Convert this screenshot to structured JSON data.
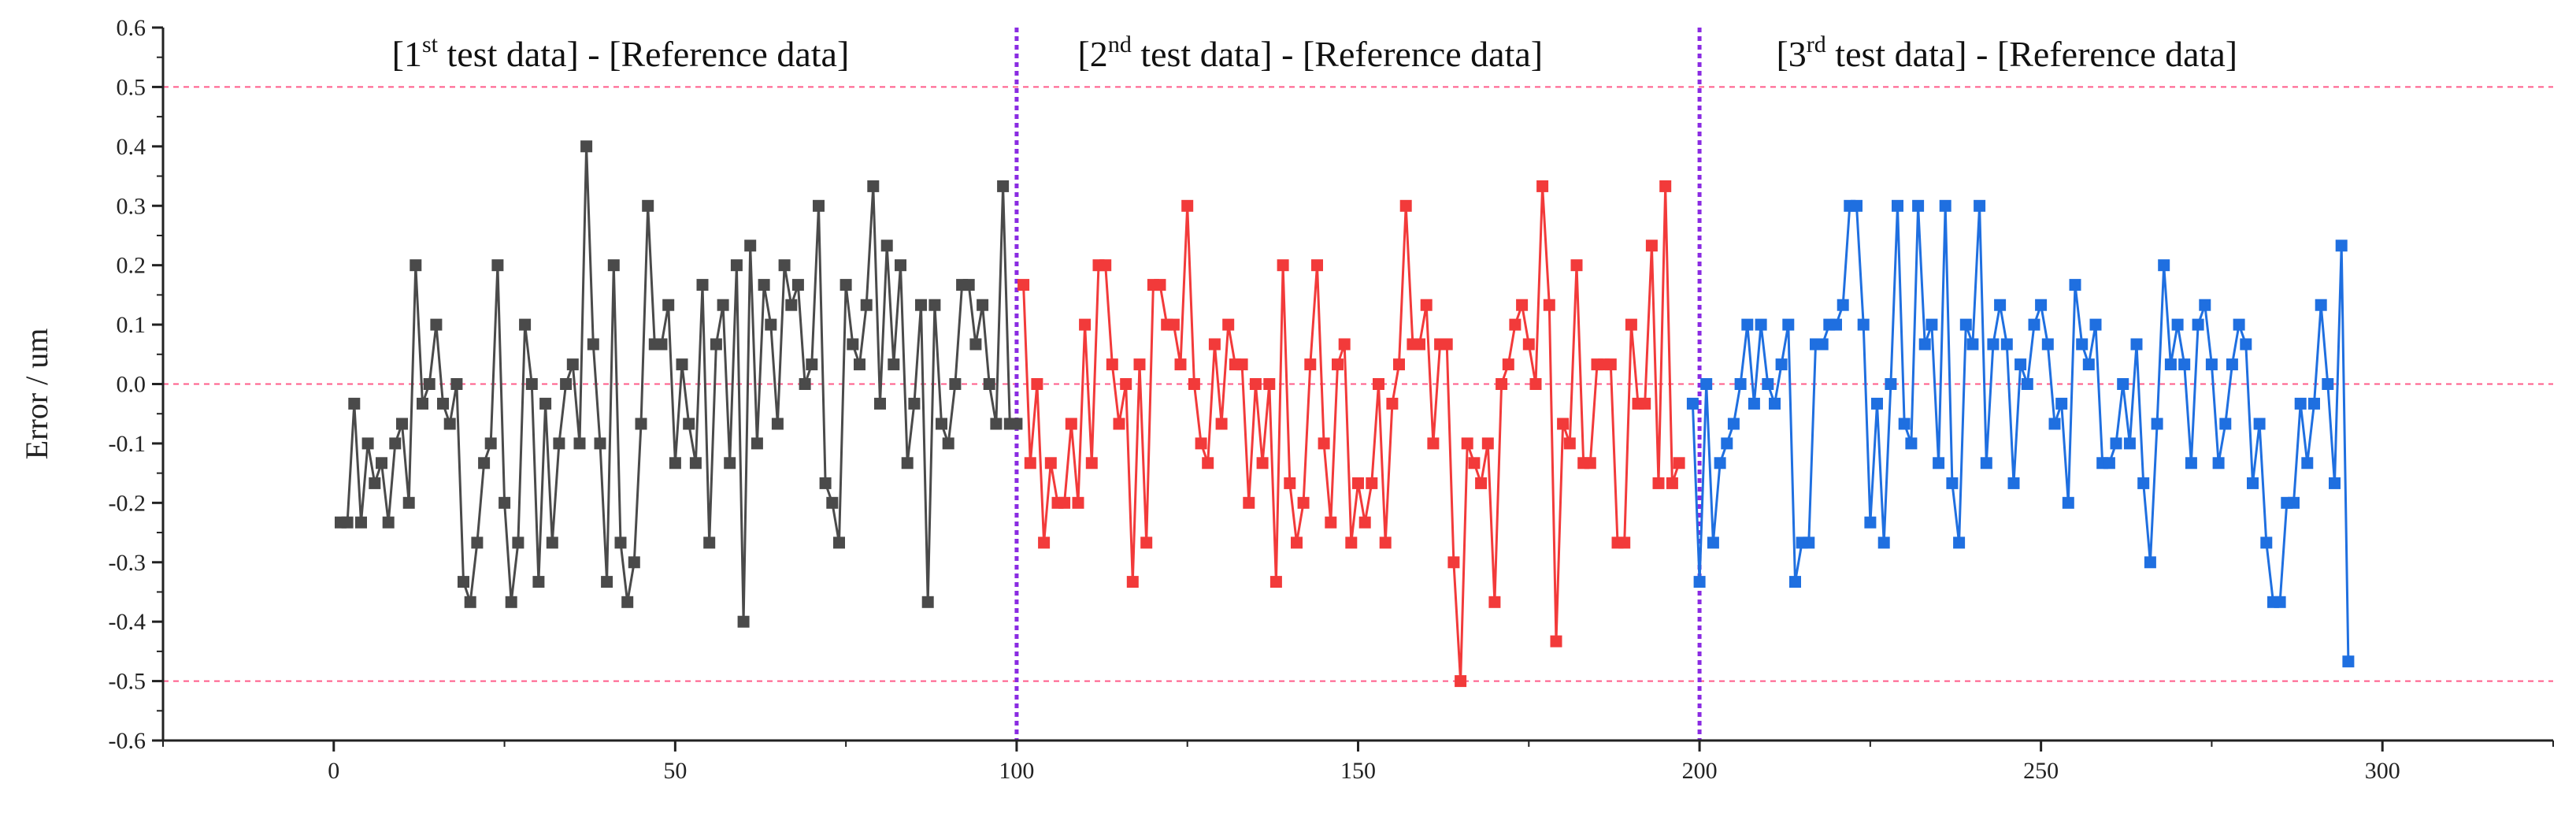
{
  "chart_data": {
    "type": "line",
    "title": "",
    "xlabel": "",
    "ylabel": "Error / um",
    "xlim": [
      -25,
      325
    ],
    "ylim": [
      -0.6,
      0.6
    ],
    "x_ticks": [
      0,
      50,
      100,
      150,
      200,
      250,
      300
    ],
    "x_tick_labels": [
      "0",
      "50",
      "100",
      "150",
      "200",
      "250",
      "300"
    ],
    "y_ticks": [
      -0.6,
      -0.5,
      -0.4,
      -0.3,
      -0.2,
      -0.1,
      0.0,
      0.1,
      0.2,
      0.3,
      0.4,
      0.5,
      0.6
    ],
    "y_tick_labels": [
      "-0.6",
      "-0.5",
      "-0.4",
      "-0.3",
      "-0.2",
      "-0.1",
      "0.0",
      "0.1",
      "0.2",
      "0.3",
      "0.4",
      "0.5",
      "0.6"
    ],
    "grid": false,
    "marker": "square",
    "reference_lines": [
      {
        "y": 0.5,
        "color": "#ff5c8a",
        "style": "dashed"
      },
      {
        "y": 0.0,
        "color": "#ff5c8a",
        "style": "dashed"
      },
      {
        "y": -0.5,
        "color": "#ff5c8a",
        "style": "dashed"
      }
    ],
    "vertical_lines": [
      {
        "x": 100,
        "color": "#8a2be2",
        "style": "dotted"
      },
      {
        "x": 200,
        "color": "#8a2be2",
        "style": "dotted"
      }
    ],
    "section_labels": [
      {
        "prefix": "[1",
        "sup": "st",
        "suffix": " test data] - [Reference data]",
        "x_center": 42
      },
      {
        "prefix": "[2",
        "sup": "nd",
        "suffix": " test data] - [Reference data]",
        "x_center": 143
      },
      {
        "prefix": "[3",
        "sup": "rd",
        "suffix": " test data] - [Reference data]",
        "x_center": 245
      }
    ],
    "series": [
      {
        "name": "[1st test data] - [Reference data]",
        "color": "#4a4a4a",
        "x_start": 1,
        "values": [
          -0.233,
          -0.233,
          -0.033,
          -0.233,
          -0.1,
          -0.167,
          -0.133,
          -0.233,
          -0.1,
          -0.067,
          -0.2,
          0.2,
          -0.033,
          0.0,
          0.1,
          -0.033,
          -0.067,
          0.0,
          -0.333,
          -0.367,
          -0.267,
          -0.133,
          -0.1,
          0.2,
          -0.2,
          -0.367,
          -0.267,
          0.1,
          0.0,
          -0.333,
          -0.033,
          -0.267,
          -0.1,
          0.0,
          0.033,
          -0.1,
          0.4,
          0.067,
          -0.1,
          -0.333,
          0.2,
          -0.267,
          -0.367,
          -0.3,
          -0.067,
          0.3,
          0.067,
          0.067,
          0.133,
          -0.133,
          0.033,
          -0.067,
          -0.133,
          0.167,
          -0.267,
          0.067,
          0.133,
          -0.133,
          0.2,
          -0.4,
          0.233,
          -0.1,
          0.167,
          0.1,
          -0.067,
          0.2,
          0.133,
          0.167,
          0.0,
          0.033,
          0.3,
          -0.167,
          -0.2,
          -0.267,
          0.167,
          0.067,
          0.033,
          0.133,
          0.333,
          -0.033,
          0.233,
          0.033,
          0.2,
          -0.133,
          -0.033,
          0.133,
          -0.367,
          0.133,
          -0.067,
          -0.1,
          0.0,
          0.167,
          0.167,
          0.067,
          0.133,
          0.0,
          -0.067,
          0.333,
          -0.067,
          -0.067
        ]
      },
      {
        "name": "[2nd test data] - [Reference data]",
        "color": "#f23a3a",
        "x_start": 101,
        "values": [
          0.167,
          -0.133,
          0.0,
          -0.267,
          -0.133,
          -0.2,
          -0.2,
          -0.067,
          -0.2,
          0.1,
          -0.133,
          0.2,
          0.2,
          0.033,
          -0.067,
          0.0,
          -0.333,
          0.033,
          -0.267,
          0.167,
          0.167,
          0.1,
          0.1,
          0.033,
          0.3,
          0.0,
          -0.1,
          -0.133,
          0.067,
          -0.067,
          0.1,
          0.033,
          0.033,
          -0.2,
          0.0,
          -0.133,
          0.0,
          -0.333,
          0.2,
          -0.167,
          -0.267,
          -0.2,
          0.033,
          0.2,
          -0.1,
          -0.233,
          0.033,
          0.067,
          -0.267,
          -0.167,
          -0.233,
          -0.167,
          0.0,
          -0.267,
          -0.033,
          0.033,
          0.3,
          0.067,
          0.067,
          0.133,
          -0.1,
          0.067,
          0.067,
          -0.3,
          -0.5,
          -0.1,
          -0.133,
          -0.167,
          -0.1,
          -0.367,
          0.0,
          0.033,
          0.1,
          0.133,
          0.067,
          0.0,
          0.333,
          0.133,
          -0.433,
          -0.067,
          -0.1,
          0.2,
          -0.133,
          -0.133,
          0.033,
          0.033,
          0.033,
          -0.267,
          -0.267,
          0.1,
          -0.033,
          -0.033,
          0.233,
          -0.167,
          0.333,
          -0.167,
          -0.133
        ]
      },
      {
        "name": "[3rd test data] - [Reference data]",
        "color": "#1f6fe0",
        "x_start": 199,
        "values": [
          -0.033,
          -0.333,
          0.0,
          -0.267,
          -0.133,
          -0.1,
          -0.067,
          0.0,
          0.1,
          -0.033,
          0.1,
          0.0,
          -0.033,
          0.033,
          0.1,
          -0.333,
          -0.267,
          -0.267,
          0.067,
          0.067,
          0.1,
          0.1,
          0.133,
          0.3,
          0.3,
          0.1,
          -0.233,
          -0.033,
          -0.267,
          0.0,
          0.3,
          -0.067,
          -0.1,
          0.3,
          0.067,
          0.1,
          -0.133,
          0.3,
          -0.167,
          -0.267,
          0.1,
          0.067,
          0.3,
          -0.133,
          0.067,
          0.133,
          0.067,
          -0.167,
          0.033,
          0.0,
          0.1,
          0.133,
          0.067,
          -0.067,
          -0.033,
          -0.2,
          0.167,
          0.067,
          0.033,
          0.1,
          -0.133,
          -0.133,
          -0.1,
          0.0,
          -0.1,
          0.067,
          -0.167,
          -0.3,
          -0.067,
          0.2,
          0.033,
          0.1,
          0.033,
          -0.133,
          0.1,
          0.133,
          0.033,
          -0.133,
          -0.067,
          0.033,
          0.1,
          0.067,
          -0.167,
          -0.067,
          -0.267,
          -0.367,
          -0.367,
          -0.2,
          -0.2,
          -0.033,
          -0.133,
          -0.033,
          0.133,
          0.0,
          -0.167,
          0.233,
          -0.467
        ]
      }
    ]
  }
}
